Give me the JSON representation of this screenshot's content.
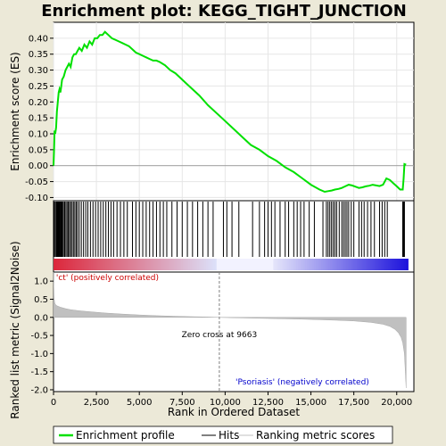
{
  "chart_data": [
    {
      "type": "line",
      "title": "Enrichment plot: KEGG_TIGHT_JUNCTION",
      "ylabel": "Enrichment score (ES)",
      "xlim": [
        0,
        21000
      ],
      "ylim": [
        -0.11,
        0.45
      ],
      "yticks": [
        -0.1,
        -0.05,
        0.0,
        0.05,
        0.1,
        0.15,
        0.2,
        0.25,
        0.3,
        0.35,
        0.4
      ],
      "ytick_labels": [
        "-0.10",
        "-0.05",
        "0.00",
        "0.05",
        "0.10",
        "0.15",
        "0.20",
        "0.25",
        "0.30",
        "0.35",
        "0.40"
      ],
      "line_color": "#00e000",
      "series": [
        {
          "name": "Enrichment profile",
          "x": [
            0,
            30,
            60,
            100,
            150,
            200,
            250,
            300,
            350,
            400,
            450,
            500,
            600,
            700,
            800,
            900,
            1000,
            1100,
            1200,
            1300,
            1400,
            1500,
            1650,
            1800,
            1950,
            2100,
            2250,
            2400,
            2550,
            2700,
            2850,
            3000,
            3100,
            3200,
            3400,
            3600,
            3800,
            4000,
            4200,
            4400,
            4600,
            4800,
            5000,
            5200,
            5400,
            5600,
            5800,
            6000,
            6200,
            6500,
            6800,
            7100,
            7400,
            7700,
            8000,
            8500,
            9000,
            9500,
            10000,
            10500,
            11000,
            11500,
            12000,
            12500,
            13000,
            13500,
            14000,
            14500,
            15000,
            15500,
            15800,
            16000,
            16200,
            16400,
            16600,
            16800,
            17000,
            17200,
            17400,
            17600,
            17800,
            18000,
            18200,
            18400,
            18600,
            18800,
            19000,
            19200,
            19400,
            19600,
            19800,
            20000,
            20200,
            20350,
            20400,
            20450,
            20500,
            20550
          ],
          "y": [
            0.0,
            0.05,
            0.11,
            0.1,
            0.12,
            0.17,
            0.2,
            0.23,
            0.24,
            0.23,
            0.25,
            0.27,
            0.28,
            0.3,
            0.31,
            0.32,
            0.31,
            0.34,
            0.35,
            0.35,
            0.36,
            0.37,
            0.36,
            0.38,
            0.37,
            0.39,
            0.38,
            0.4,
            0.4,
            0.41,
            0.41,
            0.42,
            0.415,
            0.41,
            0.4,
            0.395,
            0.39,
            0.385,
            0.38,
            0.375,
            0.365,
            0.355,
            0.35,
            0.345,
            0.34,
            0.335,
            0.33,
            0.33,
            0.325,
            0.315,
            0.3,
            0.29,
            0.275,
            0.26,
            0.245,
            0.22,
            0.19,
            0.165,
            0.14,
            0.115,
            0.09,
            0.065,
            0.05,
            0.03,
            0.015,
            -0.005,
            -0.02,
            -0.04,
            -0.06,
            -0.075,
            -0.082,
            -0.08,
            -0.078,
            -0.075,
            -0.073,
            -0.07,
            -0.065,
            -0.06,
            -0.062,
            -0.066,
            -0.07,
            -0.068,
            -0.065,
            -0.063,
            -0.06,
            -0.062,
            -0.064,
            -0.06,
            -0.04,
            -0.045,
            -0.055,
            -0.065,
            -0.075,
            -0.075,
            -0.04,
            0.005,
            0.004,
            0.003
          ]
        }
      ]
    },
    {
      "type": "hits",
      "series": [
        {
          "name": "Hits",
          "x": [
            30,
            60,
            120,
            180,
            220,
            260,
            300,
            330,
            360,
            400,
            430,
            470,
            520,
            580,
            650,
            720,
            790,
            860,
            930,
            1000,
            1080,
            1160,
            1240,
            1320,
            1400,
            1500,
            1620,
            1750,
            1880,
            2000,
            2150,
            2300,
            2450,
            2600,
            2750,
            2900,
            3050,
            3200,
            3350,
            3500,
            3700,
            3900,
            4100,
            4300,
            4600,
            4800,
            5000,
            5200,
            5400,
            5600,
            5800,
            6000,
            6200,
            6400,
            6600,
            6900,
            7200,
            7500,
            7800,
            8100,
            8400,
            8700,
            9000,
            9300,
            9900,
            10100,
            10400,
            10800,
            11600,
            12000,
            12300,
            12500,
            12700,
            12900,
            13200,
            13500,
            13700,
            14000,
            14200,
            14400,
            14600,
            14900,
            15200,
            15700,
            15900,
            16000,
            16100,
            16200,
            16300,
            16400,
            16500,
            16650,
            16800,
            16900,
            17000,
            17100,
            17200,
            17350,
            17500,
            17800,
            17950,
            18100,
            18300,
            18500,
            18700,
            19000,
            19150,
            19300,
            19450,
            20350,
            20400,
            20450
          ]
        }
      ]
    },
    {
      "type": "area",
      "ylabel": "Ranked list metric (Signal2Noise)",
      "xlabel": "Rank in Ordered Dataset",
      "xlim": [
        0,
        21000
      ],
      "ylim": [
        -2.05,
        1.25
      ],
      "xticks": [
        0,
        2500,
        5000,
        7500,
        10000,
        12500,
        15000,
        17500,
        20000
      ],
      "xtick_labels": [
        "0",
        "2,500",
        "5,000",
        "7,500",
        "10,000",
        "12,500",
        "15,000",
        "17,500",
        "20,000"
      ],
      "yticks": [
        -2.0,
        -1.5,
        -1.0,
        -0.5,
        0.0,
        0.5,
        1.0
      ],
      "ytick_labels": [
        "-2.0",
        "-1.5",
        "-1.0",
        "-0.5",
        "0.0",
        "0.5",
        "1.0"
      ],
      "zero_cross": 9663,
      "zero_cross_label": "Zero cross at 9663",
      "positive_label": "'ct' (positively correlated)",
      "negative_label": "'Psoriasis' (negatively correlated)",
      "series": [
        {
          "name": "Ranking metric scores",
          "x": [
            0,
            10,
            30,
            60,
            100,
            200,
            400,
            700,
            1000,
            1500,
            2000,
            3000,
            4000,
            5000,
            6000,
            7000,
            8000,
            9000,
            9663,
            10500,
            11500,
            12500,
            13500,
            14500,
            15500,
            16500,
            17500,
            18500,
            19200,
            19600,
            19900,
            20100,
            20250,
            20350,
            20450,
            20500,
            20550
          ],
          "y": [
            1.25,
            0.9,
            0.55,
            0.42,
            0.36,
            0.32,
            0.28,
            0.24,
            0.21,
            0.18,
            0.16,
            0.12,
            0.09,
            0.065,
            0.045,
            0.03,
            0.018,
            0.008,
            0.0,
            -0.01,
            -0.02,
            -0.03,
            -0.04,
            -0.05,
            -0.065,
            -0.08,
            -0.1,
            -0.14,
            -0.19,
            -0.25,
            -0.33,
            -0.43,
            -0.55,
            -0.7,
            -1.0,
            -1.5,
            -1.95
          ]
        }
      ]
    }
  ],
  "legend": {
    "items": [
      {
        "label": "Enrichment profile",
        "color": "#00e000"
      },
      {
        "label": "Hits",
        "color": "#000000"
      },
      {
        "label": "Ranking metric scores",
        "color": "#c0c0c0"
      }
    ]
  }
}
